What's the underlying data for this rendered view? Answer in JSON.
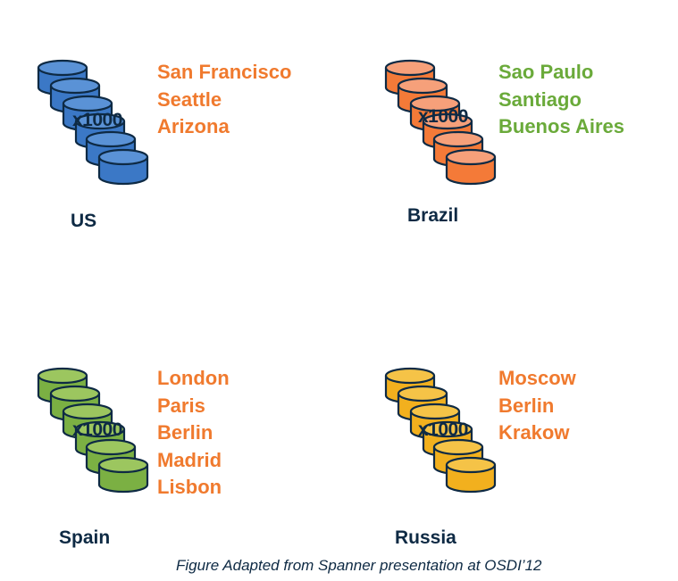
{
  "regions": [
    {
      "name": "US",
      "multiplier": "x1000",
      "cylinder_color": "#3b78c6",
      "cylinder_top_color": "#5a92d6",
      "city_color": "#f07a2e",
      "cities": [
        "San Francisco",
        "Seattle",
        "Arizona"
      ]
    },
    {
      "name": "Brazil",
      "multiplier": "x1000",
      "cylinder_color": "#f47a38",
      "cylinder_top_color": "#f6a07a",
      "city_color": "#6aaa3a",
      "cities": [
        "Sao Paulo",
        "Santiago",
        "Buenos Aires"
      ]
    },
    {
      "name": "Spain",
      "multiplier": "x1000",
      "cylinder_color": "#7bb043",
      "cylinder_top_color": "#9cc65f",
      "city_color": "#f07a2e",
      "cities": [
        "London",
        "Paris",
        "Berlin",
        "Madrid",
        "Lisbon"
      ]
    },
    {
      "name": "Russia",
      "multiplier": "x1000",
      "cylinder_color": "#f2b01e",
      "cylinder_top_color": "#f5c347",
      "city_color": "#f07a2e",
      "cities": [
        "Moscow",
        "Berlin",
        "Krakow"
      ]
    }
  ],
  "outline_color": "#0e2a44",
  "caption": "Figure Adapted from Spanner presentation at OSDI’12"
}
